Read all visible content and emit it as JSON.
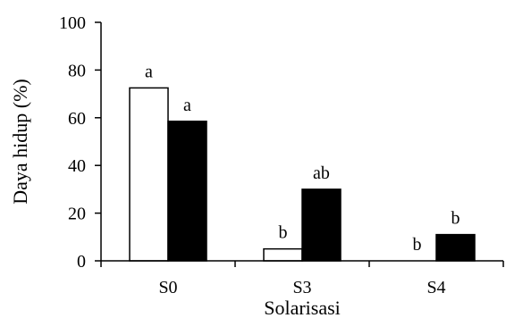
{
  "chart_data": {
    "type": "bar",
    "title": "",
    "xlabel": "Solarisasi",
    "ylabel": "Daya hidup (%)",
    "ylim": [
      0,
      100
    ],
    "yticks": [
      0,
      20,
      40,
      60,
      80,
      100
    ],
    "grid": false,
    "legend": "none",
    "categories": [
      "S0",
      "S3",
      "S4"
    ],
    "series": [
      {
        "color": "#ffffff",
        "values": [
          72.5,
          5,
          0
        ],
        "labels": [
          "a",
          "b",
          "b"
        ]
      },
      {
        "color": "#000000",
        "values": [
          58.5,
          30,
          11
        ],
        "labels": [
          "a",
          "ab",
          "b"
        ]
      }
    ]
  }
}
